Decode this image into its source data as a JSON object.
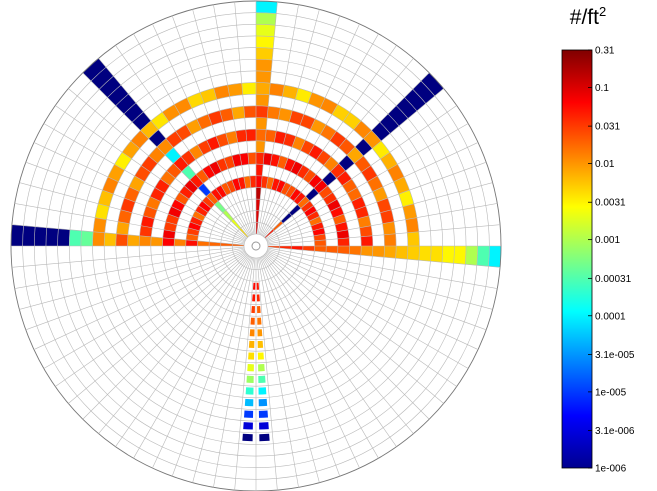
{
  "chart_data": {
    "type": "heatmap",
    "projection": "polar",
    "colorbar": {
      "unit_base": "#/ft",
      "unit_exponent": "2",
      "scale": "log",
      "range": [
        1e-06,
        0.31
      ],
      "colormap": "jet",
      "tick_labels": [
        "0.31",
        "0.1",
        "0.031",
        "0.01",
        "0.0031",
        "0.001",
        "0.00031",
        "0.0001",
        "3.1e-005",
        "1e-005",
        "3.1e-006",
        "1e-006"
      ],
      "tick_values": [
        0.31,
        0.1,
        0.031,
        0.01,
        0.0031,
        0.001,
        0.00031,
        0.0001,
        3.1e-05,
        1e-05,
        3.1e-06,
        1e-06
      ]
    },
    "grid": {
      "rings": 20,
      "sectors": 72,
      "visible": true
    },
    "rays": [
      {
        "direction": "west",
        "angle_deg": 180,
        "values": [
          0.02,
          0.02,
          0.018,
          0.016,
          0.015,
          0.013,
          0.012,
          0.01,
          0.009,
          0.008,
          0.007,
          0.006,
          0.0001,
          0.0004,
          0.0003,
          1e-06,
          1e-06,
          1e-06,
          1e-06,
          1e-06
        ]
      },
      {
        "direction": "east",
        "angle_deg": 0,
        "values": [
          0.03,
          0.04,
          0.05,
          0.03,
          0.02,
          0.02,
          0.02,
          0.015,
          0.01,
          0.01,
          0.008,
          0.006,
          0.005,
          0.004,
          0.004,
          0.003,
          0.003,
          0.001,
          0.0003,
          0.0001
        ]
      },
      {
        "direction": "north",
        "angle_deg": 90,
        "values": [
          0.1,
          0.1,
          0.1,
          0.15,
          0.2,
          0.05,
          0.02,
          0.01,
          0.01,
          0.01,
          0.01,
          0.01,
          0.01,
          0.01,
          0.01,
          0.005,
          0.003,
          0.002,
          0.001,
          0.0001
        ]
      },
      {
        "direction": "northwest",
        "angle_deg": 135,
        "values": [
          0.004,
          0.002,
          0.001,
          0.0005,
          0.0001,
          1e-05,
          0.0005,
          0.0003,
          0.0002,
          0.0001,
          1e-05,
          1e-06,
          1e-06,
          1e-06,
          1e-06,
          1e-06,
          1e-06,
          1e-06,
          1e-06,
          1e-06
        ]
      },
      {
        "direction": "northeast",
        "angle_deg": 45,
        "values": [
          0.05,
          0.02,
          1e-06,
          1e-06,
          1e-06,
          1e-06,
          1e-06,
          1e-06,
          1e-05,
          1e-06,
          1e-06,
          1e-06,
          1e-06,
          1e-06,
          1e-06,
          1e-06,
          1e-06,
          1e-06,
          1e-06,
          1e-06
        ]
      }
    ],
    "arcs": [
      {
        "ring": 4,
        "from_deg": 0,
        "to_deg": 180,
        "value": 0.04
      },
      {
        "ring": 6,
        "from_deg": 0,
        "to_deg": 180,
        "value": 0.05
      },
      {
        "ring": 8,
        "from_deg": 0,
        "to_deg": 180,
        "value": 0.03
      },
      {
        "ring": 10,
        "from_deg": 0,
        "to_deg": 180,
        "value": 0.02
      },
      {
        "ring": 12,
        "from_deg": 0,
        "to_deg": 180,
        "value": 0.008
      }
    ],
    "south_columns": [
      {
        "offset": "left",
        "values": [
          0.05,
          0.04,
          0.02,
          0.015,
          0.01,
          0.006,
          0.003,
          0.001,
          0.0003,
          0.0001,
          3e-05,
          1e-05,
          3e-06,
          1e-06
        ]
      },
      {
        "offset": "right",
        "values": [
          0.06,
          0.05,
          0.03,
          0.02,
          0.012,
          0.007,
          0.004,
          0.002,
          0.0008,
          0.0002,
          5e-05,
          1e-05,
          3e-06,
          1e-06
        ]
      }
    ]
  }
}
